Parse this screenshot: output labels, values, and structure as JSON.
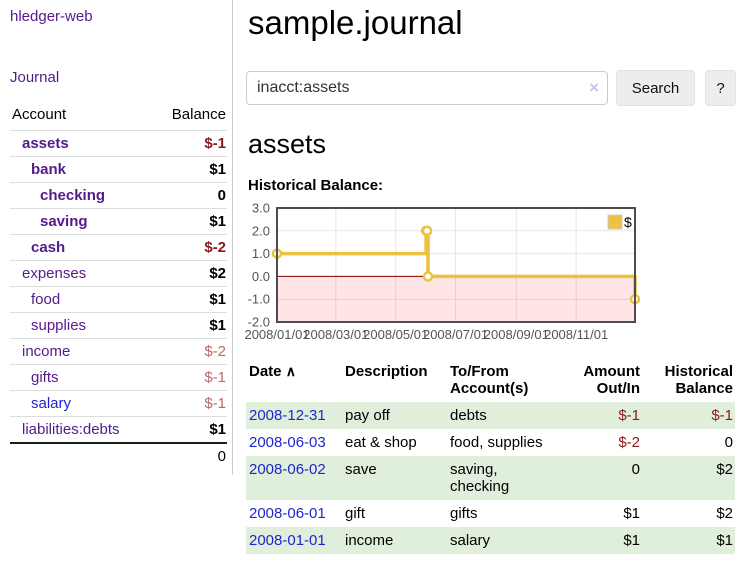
{
  "sidebar": {
    "app_title": "hledger-web",
    "nav": {
      "journal": "Journal"
    },
    "accounts": {
      "headers": {
        "account": "Account",
        "balance": "Balance"
      },
      "rows": [
        {
          "name": "assets",
          "balance": "$-1"
        },
        {
          "name": "bank",
          "balance": "$1"
        },
        {
          "name": "checking",
          "balance": "0"
        },
        {
          "name": "saving",
          "balance": "$1"
        },
        {
          "name": "cash",
          "balance": "$-2"
        },
        {
          "name": "expenses",
          "balance": "$2"
        },
        {
          "name": "food",
          "balance": "$1"
        },
        {
          "name": "supplies",
          "balance": "$1"
        },
        {
          "name": "income",
          "balance": "$-2"
        },
        {
          "name": "gifts",
          "balance": "$-1"
        },
        {
          "name": "salary",
          "balance": "$-1"
        },
        {
          "name": "liabilities:debts",
          "balance": "$1"
        }
      ],
      "total": "0"
    }
  },
  "main": {
    "title": "sample.journal",
    "search": {
      "value": "inacct:assets",
      "clear_icon": "×",
      "button_label": "Search",
      "help_label": "?"
    },
    "account_heading": "assets",
    "chart_label": "Historical Balance:",
    "register": {
      "headers": {
        "date": "Date",
        "sort_icon": "∧",
        "description": "Description",
        "tofrom": "To/From Account(s)",
        "amount": "Amount Out/In",
        "balance": "Historical Balance"
      },
      "rows": [
        {
          "date": "2008-12-31",
          "description": "pay off",
          "tofrom": "debts",
          "amount": "$-1",
          "balance": "$-1"
        },
        {
          "date": "2008-06-03",
          "description": "eat & shop",
          "tofrom": "food, supplies",
          "amount": "$-2",
          "balance": "0"
        },
        {
          "date": "2008-06-02",
          "description": "save",
          "tofrom": "saving,\nchecking",
          "amount": "0",
          "balance": "$2"
        },
        {
          "date": "2008-06-01",
          "description": "gift",
          "tofrom": "gifts",
          "amount": "$1",
          "balance": "$2"
        },
        {
          "date": "2008-01-01",
          "description": "income",
          "tofrom": "salary",
          "amount": "$1",
          "balance": "$1"
        }
      ]
    }
  },
  "chart_data": {
    "type": "line",
    "title": "Historical Balance",
    "step": true,
    "x_range": [
      "2008-01-01",
      "2008-12-31"
    ],
    "ylim": [
      -2,
      3
    ],
    "y_ticks": [
      3.0,
      2.0,
      1.0,
      0.0,
      -1.0,
      -2.0
    ],
    "x_ticks": [
      "2008/01/01",
      "2008/03/01",
      "2008/05/01",
      "2008/07/01",
      "2008/09/01",
      "2008/11/01"
    ],
    "series": [
      {
        "name": "$",
        "color": "#EDC240",
        "points": [
          [
            "2008-01-01",
            1
          ],
          [
            "2008-06-01",
            2
          ],
          [
            "2008-06-02",
            2
          ],
          [
            "2008-06-03",
            0
          ],
          [
            "2008-12-31",
            -1
          ]
        ]
      }
    ],
    "negative_region": {
      "from": 0,
      "to": -2,
      "fill": "rgba(255,0,0,0.10)",
      "line_color": "#8b0000"
    },
    "legend": {
      "label": "$",
      "position": "top-right"
    },
    "grid": true
  }
}
